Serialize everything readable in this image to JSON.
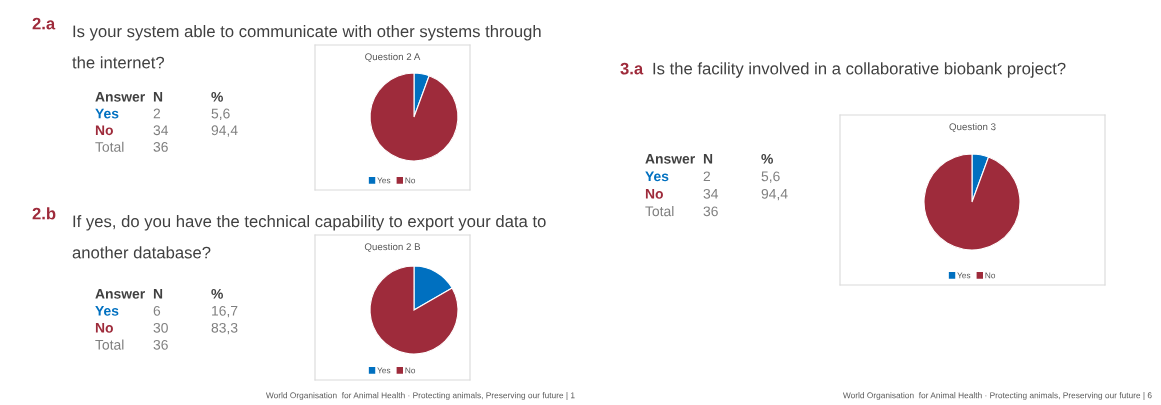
{
  "chart_data": [
    {
      "type": "pie",
      "title": "Question 2 A",
      "categories": [
        "Yes",
        "No"
      ],
      "values": [
        5.6,
        94.4
      ],
      "colors": [
        "#0070c0",
        "#9e2b3b"
      ],
      "legend": "bottom",
      "annotations": [
        "2.a",
        "Is your system able to communicate with other systems through\nthe internet?",
        "Answer",
        "N",
        "%",
        "Yes",
        "2",
        "5,6",
        "No",
        "34",
        "94,4",
        "Total",
        "36"
      ]
    },
    {
      "type": "pie",
      "title": "Question 2 B",
      "categories": [
        "Yes",
        "No"
      ],
      "values": [
        16.7,
        83.3
      ],
      "colors": [
        "#0070c0",
        "#9e2b3b"
      ],
      "legend": "bottom",
      "annotations": [
        "2.b",
        "If yes, do you have the technical capability to export your data to\nanother database?",
        "Answer",
        "N",
        "%",
        "Yes",
        "6",
        "16,7",
        "No",
        "30",
        "83,3",
        "Total",
        "36",
        "World Organisation  for Animal Health · Protecting animals, Preserving our future | 1"
      ]
    },
    {
      "type": "pie",
      "title": "Question 3",
      "categories": [
        "Yes",
        "No"
      ],
      "values": [
        5.6,
        94.4
      ],
      "colors": [
        "#0070c0",
        "#9e2b3b"
      ],
      "legend": "bottom",
      "annotations": [
        "3.a",
        "Is the facility involved in a collaborative biobank project?",
        "Answer",
        "N",
        "%",
        "Yes",
        "2",
        "5,6",
        "No",
        "34",
        "94,4",
        "Total",
        "36",
        "World Organisation  for Animal Health · Protecting animals, Preserving our future | 6"
      ]
    }
  ]
}
